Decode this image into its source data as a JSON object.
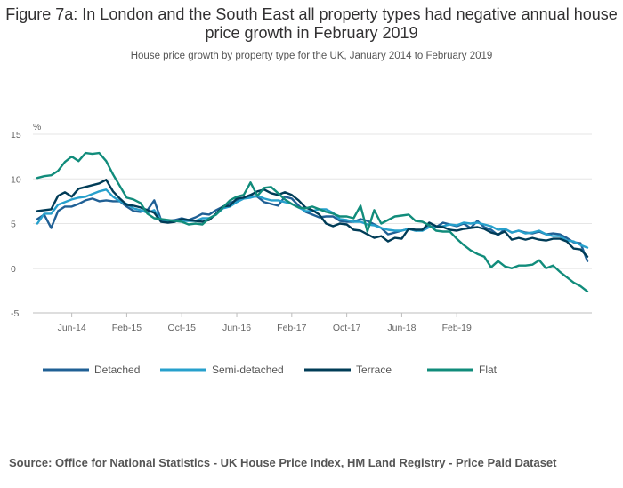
{
  "chart_data": {
    "type": "line",
    "title": "Figure 7a: In London and the South East all property types had negative annual house price growth in February 2019",
    "subtitle": "House price growth by property type for the UK, January 2014 to February 2019",
    "ylabel": "%",
    "ylim": [
      -5,
      15
    ],
    "yticks": [
      "15",
      "10",
      "5",
      "0",
      "-5"
    ],
    "xtick_labels": [
      "Jun-14",
      "Feb-15",
      "Oct-15",
      "Jun-16",
      "Feb-17",
      "Oct-17",
      "Jun-18",
      "Feb-19"
    ],
    "x_start": "Jan-2014",
    "x_end": "Feb-2019",
    "legend_position": "bottom-left",
    "series": [
      {
        "name": "Detached",
        "color": "#206095",
        "values": [
          5.5,
          6.0,
          4.5,
          6.4,
          6.9,
          6.9,
          7.2,
          7.6,
          7.8,
          7.5,
          7.6,
          7.5,
          7.5,
          6.9,
          6.4,
          6.3,
          6.5,
          7.6,
          5.4,
          5.3,
          5.4,
          5.6,
          5.4,
          5.7,
          6.1,
          6.0,
          6.5,
          6.9,
          7.3,
          7.6,
          7.9,
          8.1,
          8.0,
          7.4,
          7.2,
          7.0,
          8.0,
          7.8,
          7.0,
          6.3,
          6.0,
          5.7,
          5.8,
          5.8,
          5.3,
          5.2,
          5.2,
          5.5,
          5.3,
          4.9,
          4.5,
          3.8,
          4.0,
          4.2,
          4.4,
          4.2,
          4.3,
          4.7,
          4.6,
          5.1,
          4.9,
          4.7,
          5.0,
          4.5,
          5.3,
          4.6,
          4.3,
          3.7,
          4.4,
          4.0,
          4.2,
          4.0,
          3.9,
          4.1,
          3.8,
          3.9,
          3.8,
          3.4,
          2.9,
          2.8,
          0.8
        ]
      },
      {
        "name": "Semi-detached",
        "color": "#27A0CC",
        "values": [
          5.0,
          6.1,
          6.1,
          7.1,
          7.4,
          7.7,
          7.9,
          8.0,
          8.3,
          8.6,
          8.8,
          8.0,
          7.5,
          7.2,
          6.7,
          6.5,
          6.2,
          6.5,
          5.4,
          5.2,
          5.3,
          5.3,
          5.3,
          5.3,
          5.6,
          5.6,
          6.0,
          6.7,
          6.9,
          7.4,
          7.8,
          7.9,
          8.1,
          7.8,
          7.6,
          7.6,
          7.4,
          7.2,
          6.8,
          6.4,
          6.4,
          6.6,
          6.6,
          6.2,
          5.5,
          5.4,
          5.2,
          5.2,
          4.9,
          4.8,
          4.5,
          4.3,
          4.2,
          4.2,
          4.4,
          4.2,
          4.2,
          4.6,
          4.6,
          4.7,
          4.9,
          4.8,
          5.1,
          5.0,
          5.1,
          4.9,
          4.7,
          4.3,
          4.4,
          4.0,
          4.2,
          3.9,
          4.0,
          4.2,
          3.8,
          3.6,
          3.6,
          3.1,
          3.0,
          2.6,
          2.3
        ]
      },
      {
        "name": "Terrace",
        "color": "#003C57",
        "values": [
          6.4,
          6.5,
          6.6,
          8.1,
          8.5,
          8.0,
          8.9,
          9.1,
          9.3,
          9.5,
          9.9,
          8.6,
          7.8,
          7.1,
          7.0,
          6.8,
          6.5,
          6.2,
          5.2,
          5.1,
          5.2,
          5.5,
          5.4,
          5.3,
          5.2,
          5.4,
          6.1,
          6.9,
          7.0,
          7.8,
          7.9,
          8.2,
          8.6,
          8.8,
          8.4,
          8.2,
          8.5,
          8.2,
          7.6,
          6.8,
          6.5,
          6.0,
          5.0,
          4.7,
          5.0,
          4.9,
          4.3,
          4.2,
          3.8,
          3.4,
          3.6,
          3.0,
          3.4,
          3.3,
          4.4,
          4.3,
          4.3,
          5.1,
          4.7,
          4.6,
          4.3,
          4.2,
          4.4,
          4.5,
          4.6,
          4.4,
          4.0,
          3.8,
          4.1,
          3.2,
          3.4,
          3.2,
          3.4,
          3.2,
          3.1,
          3.3,
          3.3,
          3.0,
          2.2,
          2.1,
          1.3
        ]
      },
      {
        "name": "Flat",
        "color": "#118C7B",
        "values": [
          10.1,
          10.3,
          10.4,
          10.9,
          11.9,
          12.5,
          12.0,
          12.9,
          12.8,
          12.9,
          12.0,
          10.5,
          9.2,
          7.9,
          7.7,
          7.3,
          6.1,
          5.6,
          5.5,
          5.4,
          5.3,
          5.2,
          4.9,
          5.0,
          4.9,
          5.6,
          6.0,
          6.8,
          7.6,
          8.0,
          8.2,
          9.6,
          8.1,
          9.0,
          9.1,
          8.4,
          7.7,
          7.2,
          6.8,
          6.7,
          6.9,
          6.6,
          6.3,
          6.1,
          5.8,
          5.8,
          5.6,
          7.0,
          4.1,
          6.5,
          5.0,
          5.4,
          5.8,
          5.9,
          6.0,
          5.3,
          5.2,
          4.8,
          4.2,
          4.1,
          4.1,
          3.3,
          2.6,
          2.0,
          1.6,
          1.3,
          0.1,
          0.8,
          0.2,
          0.0,
          0.3,
          0.3,
          0.4,
          0.9,
          0.0,
          0.3,
          -0.4,
          -1.0,
          -1.6,
          -2.0,
          -2.6
        ]
      }
    ]
  },
  "source": "Source: Office for National Statistics - UK House Price Index, HM Land Registry - Price Paid Dataset"
}
